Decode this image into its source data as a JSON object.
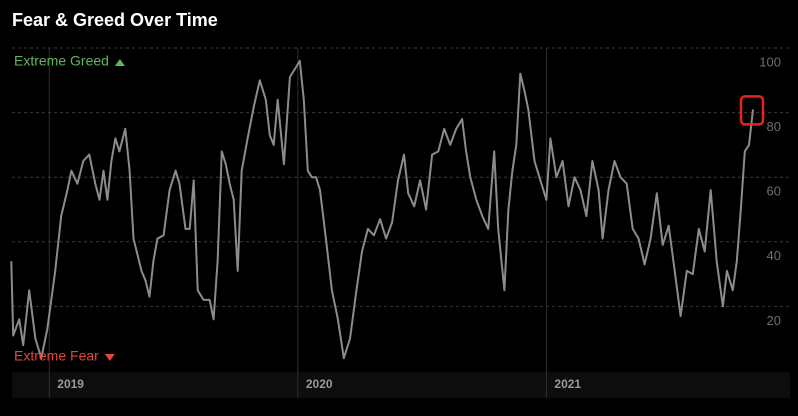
{
  "chart_data": {
    "type": "line",
    "title": "Fear & Greed Over Time",
    "annotations": [
      {
        "text": "Extreme Greed",
        "color": "#5cb85c",
        "at": "top"
      },
      {
        "text": "Extreme Fear",
        "color": "#e8443a",
        "at": "bottom"
      }
    ],
    "x": [
      2018.847,
      2018.855,
      2018.879,
      2018.895,
      2018.919,
      2018.944,
      2018.968,
      2018.992,
      2019.008,
      2019.024,
      2019.048,
      2019.073,
      2019.089,
      2019.113,
      2019.137,
      2019.161,
      2019.185,
      2019.202,
      2019.218,
      2019.234,
      2019.25,
      2019.266,
      2019.282,
      2019.306,
      2019.323,
      2019.339,
      2019.355,
      2019.371,
      2019.387,
      2019.403,
      2019.419,
      2019.435,
      2019.46,
      2019.484,
      2019.508,
      2019.524,
      2019.548,
      2019.565,
      2019.581,
      2019.597,
      2019.621,
      2019.645,
      2019.661,
      2019.677,
      2019.694,
      2019.71,
      2019.726,
      2019.742,
      2019.758,
      2019.774,
      2019.798,
      2019.823,
      2019.847,
      2019.871,
      2019.887,
      2019.903,
      2019.919,
      2019.944,
      2019.968,
      2019.992,
      2020.008,
      2020.024,
      2020.04,
      2020.056,
      2020.073,
      2020.089,
      2020.113,
      2020.137,
      2020.161,
      2020.185,
      2020.21,
      2020.234,
      2020.258,
      2020.282,
      2020.306,
      2020.331,
      2020.355,
      2020.379,
      2020.403,
      2020.427,
      2020.444,
      2020.468,
      2020.492,
      2020.516,
      2020.54,
      2020.565,
      2020.589,
      2020.613,
      2020.637,
      2020.661,
      2020.677,
      2020.694,
      2020.718,
      2020.742,
      2020.766,
      2020.79,
      2020.806,
      2020.831,
      2020.847,
      2020.863,
      2020.879,
      2020.895,
      2020.911,
      2020.927,
      2020.952,
      2020.976,
      2021.0,
      2021.016,
      2021.04,
      2021.065,
      2021.089,
      2021.113,
      2021.137,
      2021.161,
      2021.185,
      2021.21,
      2021.226,
      2021.25,
      2021.274,
      2021.298,
      2021.323,
      2021.347,
      2021.371,
      2021.395,
      2021.419,
      2021.444,
      2021.468,
      2021.492,
      2021.516,
      2021.54,
      2021.565,
      2021.589,
      2021.613,
      2021.637,
      2021.661,
      2021.685,
      2021.71,
      2021.726,
      2021.75,
      2021.766,
      2021.782,
      2021.798,
      2021.815,
      2021.831
    ],
    "values": [
      34,
      11,
      16,
      8,
      25,
      10,
      4,
      13,
      22,
      31,
      48,
      56,
      62,
      58,
      65,
      67,
      58,
      53,
      62,
      53,
      65,
      72,
      68,
      75,
      62,
      41,
      36,
      31,
      28,
      23,
      34,
      41,
      42,
      56,
      62,
      58,
      44,
      44,
      59,
      25,
      22,
      22,
      16,
      34,
      68,
      64,
      58,
      53,
      31,
      62,
      72,
      82,
      90,
      84,
      73,
      70,
      84,
      64,
      91,
      94,
      96,
      84,
      62,
      60,
      60,
      56,
      41,
      25,
      16,
      4,
      10,
      24,
      37,
      44,
      42,
      47,
      41,
      46,
      59,
      67,
      55,
      51,
      59,
      50,
      67,
      68,
      75,
      70,
      75,
      78,
      68,
      60,
      53,
      48,
      44,
      68,
      44,
      25,
      50,
      62,
      70,
      92,
      87,
      81,
      65,
      59,
      53,
      72,
      60,
      65,
      51,
      60,
      56,
      48,
      65,
      56,
      41,
      56,
      65,
      60,
      58,
      44,
      41,
      33,
      41,
      55,
      39,
      45,
      31,
      17,
      31,
      30,
      44,
      37,
      56,
      34,
      20,
      31,
      25,
      34,
      50,
      68,
      70,
      81
    ],
    "color": "#8c8c8c",
    "xlim": [
      2018.85,
      2021.98
    ],
    "xticks": [
      2019,
      2020,
      2021
    ],
    "ylim": [
      0,
      100
    ],
    "yticks": [
      20,
      40,
      60,
      80,
      100
    ],
    "grid": true,
    "highlight_color": "#e8231c"
  }
}
